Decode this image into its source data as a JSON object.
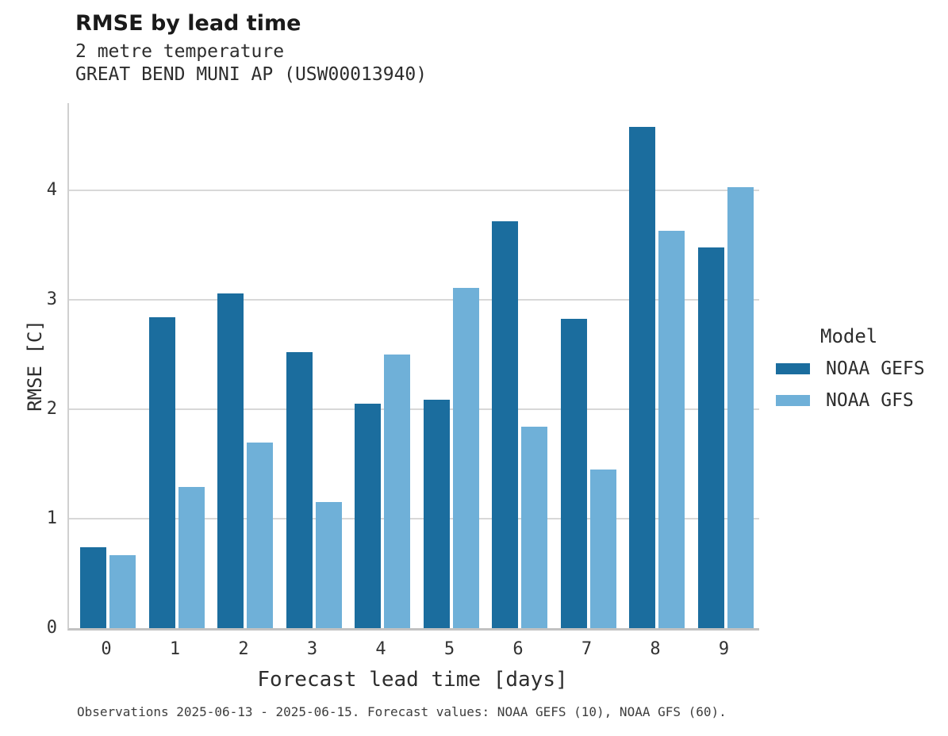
{
  "header": {
    "title": "RMSE by lead time",
    "subtitle_line1": "2 metre temperature",
    "subtitle_line2": "GREAT BEND MUNI AP (USW00013940)"
  },
  "legend": {
    "title": "Model",
    "entries": [
      {
        "label": "NOAA GEFS",
        "color": "#1b6d9e"
      },
      {
        "label": "NOAA GFS",
        "color": "#6fb0d8"
      }
    ]
  },
  "axes": {
    "xlabel": "Forecast lead time [days]",
    "ylabel": "RMSE [C]"
  },
  "caption": "Observations 2025-06-13 - 2025-06-15. Forecast values: NOAA GEFS (10), NOAA GFS (60).",
  "colors": {
    "series_dark": "#1b6d9e",
    "series_light": "#6fb0d8",
    "gridline": "#d8d8d8"
  },
  "chart_data": {
    "type": "bar",
    "title": "RMSE by lead time",
    "subtitle": [
      "2 metre temperature",
      "GREAT BEND MUNI AP (USW00013940)"
    ],
    "categories": [
      "0",
      "1",
      "2",
      "3",
      "4",
      "5",
      "6",
      "7",
      "8",
      "9"
    ],
    "series": [
      {
        "name": "NOAA GEFS",
        "color": "#1b6d9e",
        "values": [
          0.74,
          2.84,
          3.06,
          2.52,
          2.05,
          2.09,
          3.72,
          2.83,
          4.58,
          3.48
        ]
      },
      {
        "name": "NOAA GFS",
        "color": "#6fb0d8",
        "values": [
          0.67,
          1.29,
          1.7,
          1.15,
          2.5,
          3.11,
          1.84,
          1.45,
          3.63,
          4.03
        ]
      }
    ],
    "xlabel": "Forecast lead time [days]",
    "ylabel": "RMSE [C]",
    "ylim": [
      0,
      4.8
    ],
    "yticks": [
      0,
      1,
      2,
      3,
      4
    ],
    "grid": true,
    "legend_title": "Model",
    "legend_position": "right"
  }
}
